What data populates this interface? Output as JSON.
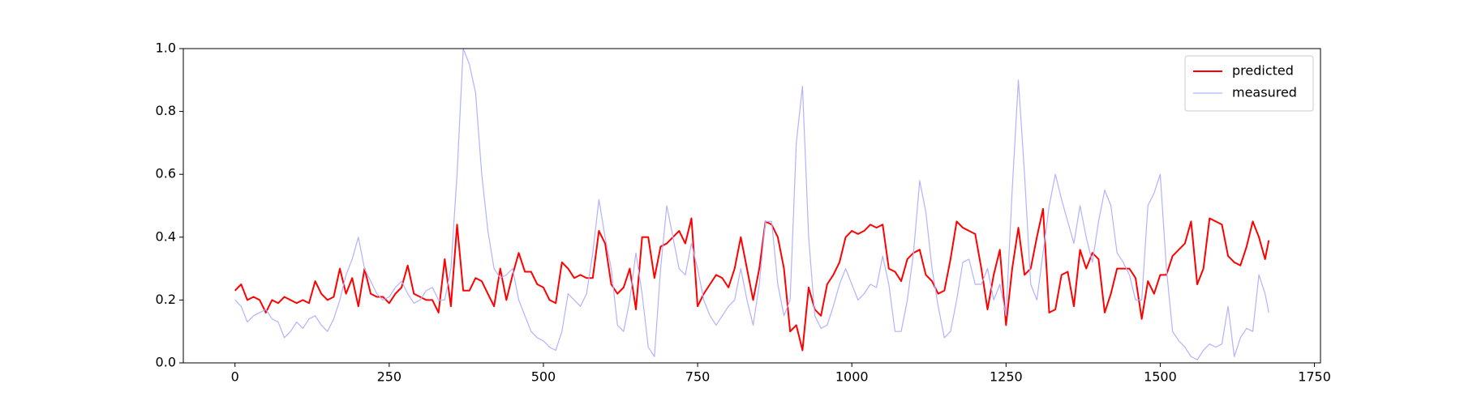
{
  "chart_data": {
    "type": "line",
    "x": [
      0,
      10,
      20,
      30,
      40,
      50,
      60,
      70,
      80,
      90,
      100,
      110,
      120,
      130,
      140,
      150,
      160,
      170,
      180,
      190,
      200,
      210,
      220,
      230,
      240,
      250,
      260,
      270,
      280,
      290,
      300,
      310,
      320,
      330,
      340,
      350,
      360,
      370,
      380,
      390,
      400,
      410,
      420,
      430,
      440,
      450,
      460,
      470,
      480,
      490,
      500,
      510,
      520,
      530,
      540,
      550,
      560,
      570,
      580,
      590,
      600,
      610,
      620,
      630,
      640,
      650,
      660,
      670,
      680,
      690,
      700,
      710,
      720,
      730,
      740,
      750,
      760,
      770,
      780,
      790,
      800,
      810,
      820,
      830,
      840,
      850,
      860,
      870,
      880,
      890,
      900,
      910,
      920,
      930,
      940,
      950,
      960,
      970,
      980,
      990,
      1000,
      1010,
      1020,
      1030,
      1040,
      1050,
      1060,
      1070,
      1080,
      1090,
      1100,
      1110,
      1120,
      1130,
      1140,
      1150,
      1160,
      1170,
      1180,
      1190,
      1200,
      1210,
      1220,
      1230,
      1240,
      1250,
      1260,
      1270,
      1280,
      1290,
      1300,
      1310,
      1320,
      1330,
      1340,
      1350,
      1360,
      1370,
      1380,
      1390,
      1400,
      1410,
      1420,
      1430,
      1440,
      1450,
      1460,
      1470,
      1480,
      1490,
      1500,
      1510,
      1520,
      1530,
      1540,
      1550,
      1560,
      1570,
      1580,
      1590,
      1600,
      1610,
      1620,
      1630,
      1640,
      1650,
      1660,
      1670,
      1676
    ],
    "series": [
      {
        "name": "predicted",
        "color": "#ff0000",
        "width": 2,
        "values": [
          0.23,
          0.25,
          0.2,
          0.21,
          0.2,
          0.16,
          0.2,
          0.19,
          0.21,
          0.2,
          0.19,
          0.2,
          0.19,
          0.26,
          0.22,
          0.2,
          0.21,
          0.3,
          0.22,
          0.27,
          0.18,
          0.3,
          0.22,
          0.21,
          0.21,
          0.19,
          0.22,
          0.24,
          0.31,
          0.22,
          0.21,
          0.2,
          0.2,
          0.16,
          0.33,
          0.18,
          0.44,
          0.23,
          0.23,
          0.27,
          0.26,
          0.22,
          0.18,
          0.3,
          0.2,
          0.28,
          0.35,
          0.29,
          0.29,
          0.25,
          0.24,
          0.2,
          0.19,
          0.32,
          0.3,
          0.27,
          0.28,
          0.27,
          0.27,
          0.42,
          0.38,
          0.25,
          0.22,
          0.24,
          0.3,
          0.17,
          0.4,
          0.4,
          0.27,
          0.37,
          0.38,
          0.4,
          0.42,
          0.38,
          0.46,
          0.18,
          0.22,
          0.25,
          0.28,
          0.27,
          0.24,
          0.3,
          0.4,
          0.3,
          0.2,
          0.3,
          0.45,
          0.44,
          0.4,
          0.3,
          0.1,
          0.12,
          0.04,
          0.24,
          0.17,
          0.15,
          0.25,
          0.28,
          0.32,
          0.4,
          0.42,
          0.41,
          0.42,
          0.44,
          0.43,
          0.44,
          0.3,
          0.29,
          0.26,
          0.33,
          0.35,
          0.36,
          0.28,
          0.26,
          0.22,
          0.23,
          0.33,
          0.45,
          0.43,
          0.42,
          0.41,
          0.3,
          0.17,
          0.28,
          0.36,
          0.12,
          0.3,
          0.43,
          0.28,
          0.3,
          0.4,
          0.49,
          0.16,
          0.17,
          0.28,
          0.29,
          0.18,
          0.36,
          0.3,
          0.35,
          0.33,
          0.16,
          0.22,
          0.3,
          0.3,
          0.3,
          0.27,
          0.14,
          0.26,
          0.22,
          0.28,
          0.28,
          0.34,
          0.36,
          0.38,
          0.45,
          0.25,
          0.3,
          0.46,
          0.45,
          0.44,
          0.34,
          0.32,
          0.31,
          0.37,
          0.45,
          0.4,
          0.33,
          0.39
        ]
      },
      {
        "name": "measured",
        "color": "#b2b2ff",
        "width": 1.2,
        "values": [
          0.2,
          0.18,
          0.13,
          0.15,
          0.16,
          0.17,
          0.14,
          0.13,
          0.08,
          0.1,
          0.13,
          0.11,
          0.14,
          0.15,
          0.12,
          0.1,
          0.14,
          0.2,
          0.28,
          0.33,
          0.4,
          0.3,
          0.26,
          0.22,
          0.2,
          0.21,
          0.24,
          0.26,
          0.22,
          0.19,
          0.2,
          0.23,
          0.24,
          0.2,
          0.2,
          0.3,
          0.6,
          1.0,
          0.95,
          0.86,
          0.6,
          0.42,
          0.3,
          0.27,
          0.28,
          0.3,
          0.2,
          0.15,
          0.1,
          0.08,
          0.07,
          0.05,
          0.04,
          0.1,
          0.22,
          0.2,
          0.18,
          0.22,
          0.35,
          0.52,
          0.4,
          0.3,
          0.12,
          0.1,
          0.2,
          0.35,
          0.22,
          0.05,
          0.02,
          0.3,
          0.5,
          0.4,
          0.3,
          0.28,
          0.38,
          0.3,
          0.2,
          0.15,
          0.12,
          0.15,
          0.18,
          0.2,
          0.3,
          0.2,
          0.12,
          0.25,
          0.45,
          0.45,
          0.25,
          0.15,
          0.2,
          0.7,
          0.88,
          0.4,
          0.15,
          0.11,
          0.12,
          0.18,
          0.25,
          0.3,
          0.25,
          0.2,
          0.22,
          0.25,
          0.24,
          0.34,
          0.25,
          0.1,
          0.1,
          0.2,
          0.35,
          0.58,
          0.48,
          0.3,
          0.18,
          0.08,
          0.1,
          0.2,
          0.32,
          0.33,
          0.25,
          0.25,
          0.3,
          0.2,
          0.25,
          0.15,
          0.55,
          0.9,
          0.6,
          0.25,
          0.2,
          0.35,
          0.5,
          0.6,
          0.52,
          0.45,
          0.38,
          0.5,
          0.4,
          0.32,
          0.45,
          0.55,
          0.5,
          0.35,
          0.32,
          0.28,
          0.2,
          0.2,
          0.5,
          0.54,
          0.6,
          0.3,
          0.1,
          0.07,
          0.05,
          0.02,
          0.01,
          0.04,
          0.06,
          0.05,
          0.06,
          0.18,
          0.02,
          0.08,
          0.11,
          0.1,
          0.28,
          0.22,
          0.16
        ]
      }
    ],
    "xlim": [
      -83.8,
      1759.8
    ],
    "ylim": [
      0,
      1
    ],
    "xticks": [
      0,
      250,
      500,
      750,
      1000,
      1250,
      1500,
      1750
    ],
    "yticks": [
      {
        "value": 0,
        "label": "0.0"
      },
      0.2,
      0.4,
      0.6,
      0.8,
      {
        "value": 1,
        "label": "1.0"
      }
    ],
    "legend": "upper right"
  }
}
